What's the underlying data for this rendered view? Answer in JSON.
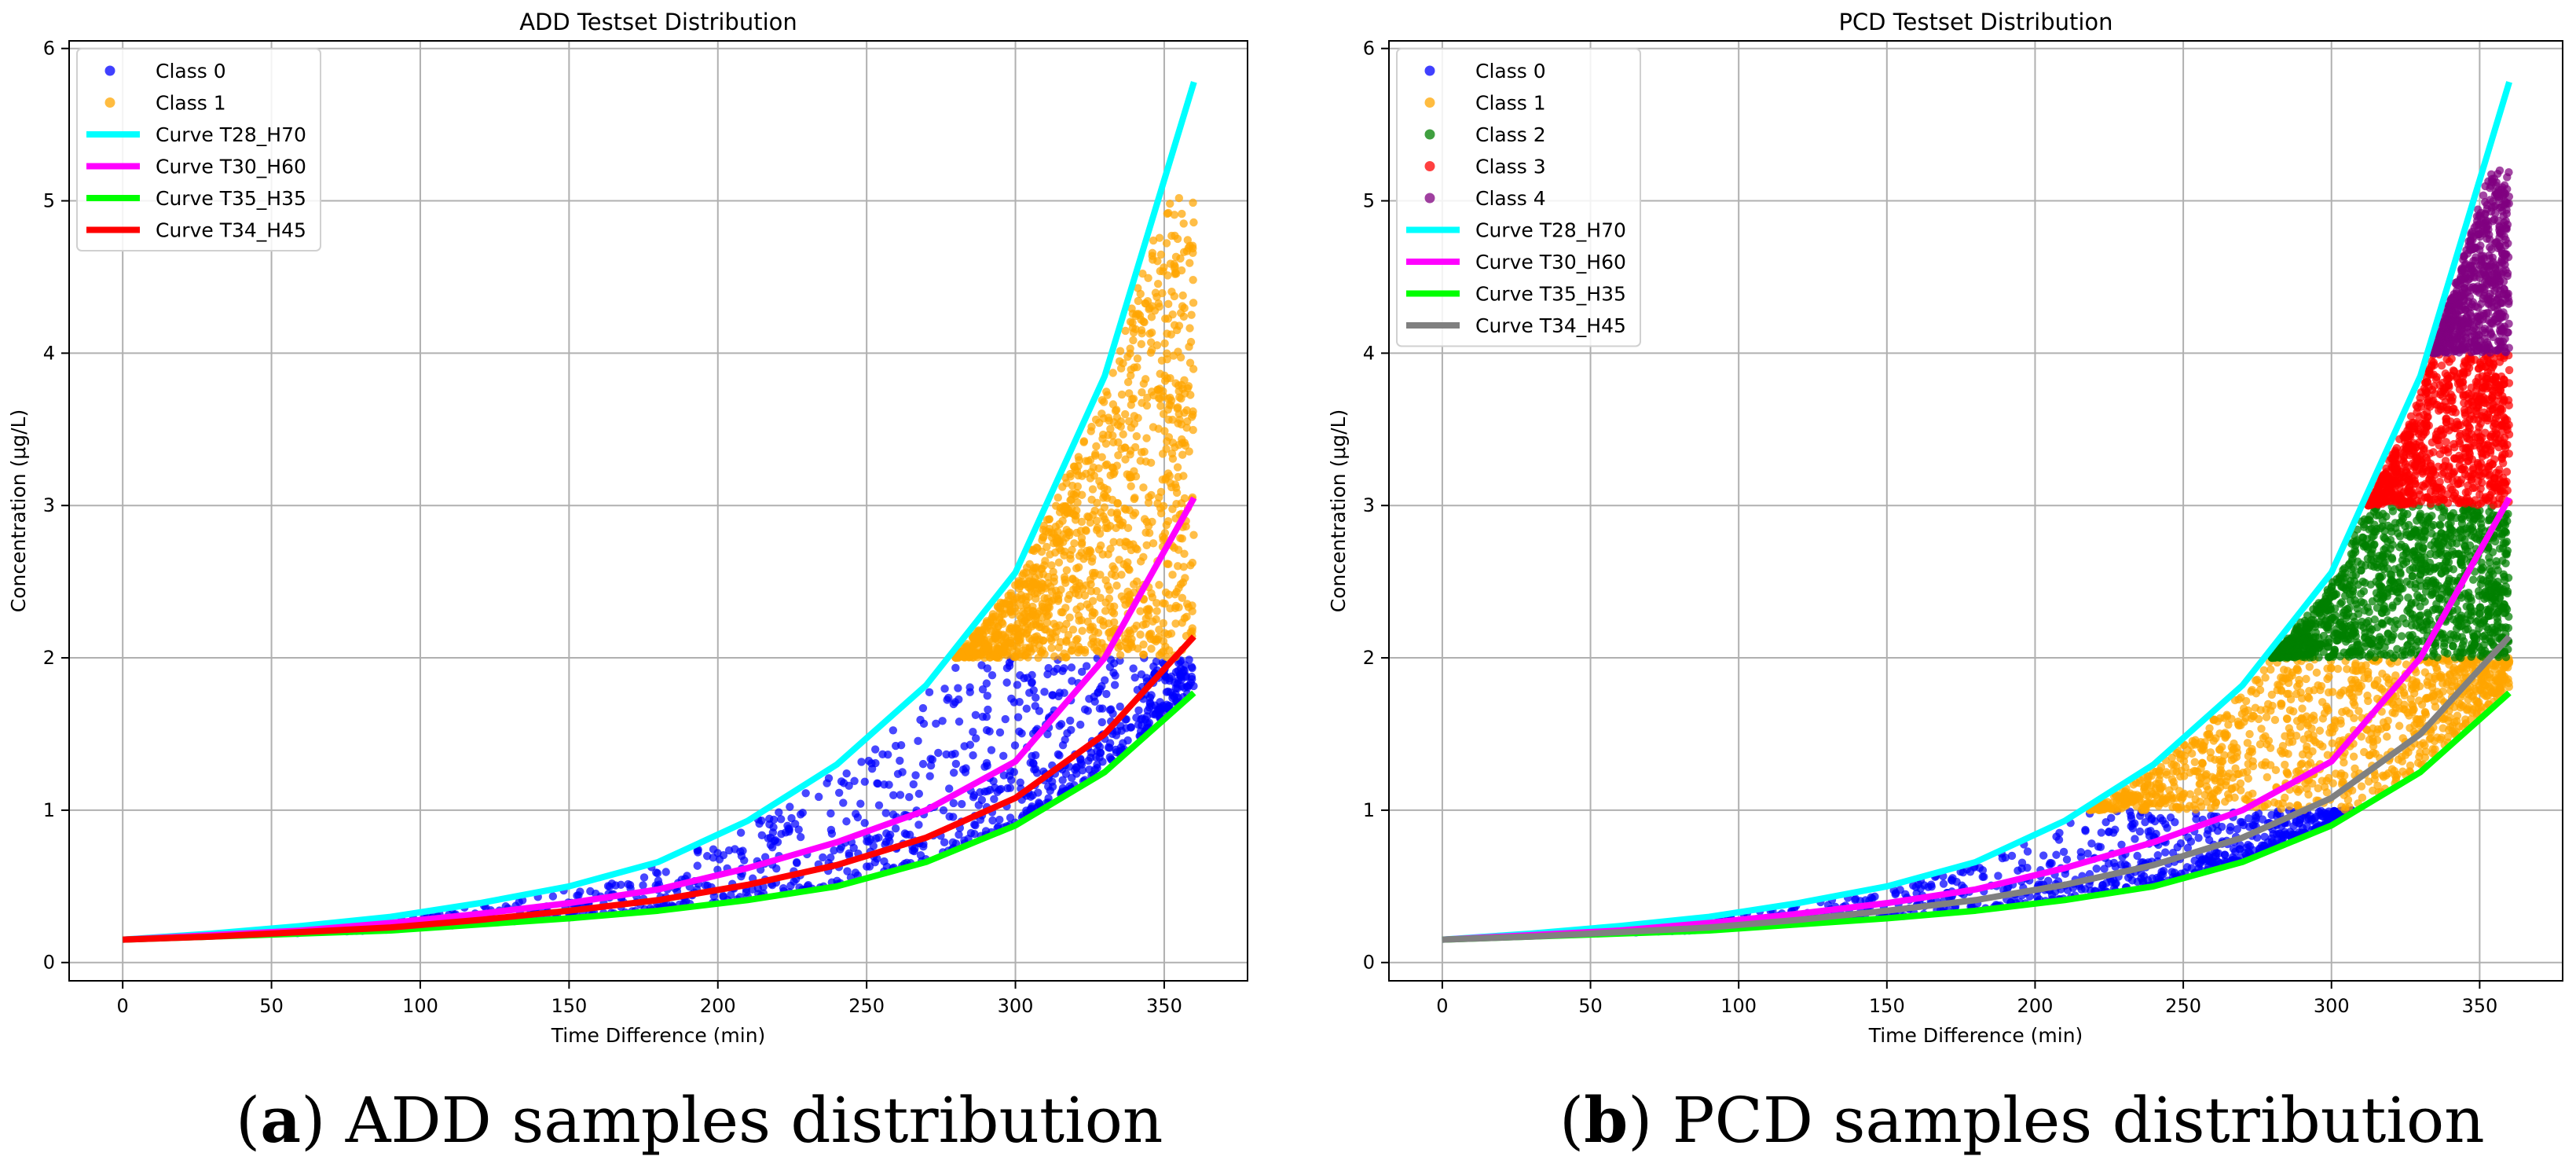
{
  "chart_data": [
    {
      "type": "scatter",
      "title": "ADD Testset Distribution",
      "xlabel": "Time Difference (min)",
      "ylabel": "Concentration (μg/L)",
      "xlim": [
        -18,
        378
      ],
      "ylim": [
        -0.12,
        6.05
      ],
      "xticks": [
        0,
        50,
        100,
        150,
        200,
        250,
        300,
        350
      ],
      "yticks": [
        0,
        1,
        2,
        3,
        4,
        5,
        6
      ],
      "grid": true,
      "legend_position": "top-left",
      "scatter_series": [
        {
          "name": "Class 0",
          "color": "#0000ff",
          "y_band": [
            0,
            2
          ],
          "approx_points": 900
        },
        {
          "name": "Class 1",
          "color": "#ffa500",
          "y_band": [
            2,
            5.05
          ],
          "approx_points": 1200
        }
      ],
      "curve_x": [
        0,
        30,
        60,
        90,
        120,
        150,
        180,
        210,
        240,
        270,
        300,
        330,
        360
      ],
      "curves": [
        {
          "name": "Curve T28_H70",
          "color": "#00ffff",
          "values": [
            0.15,
            0.19,
            0.24,
            0.3,
            0.39,
            0.5,
            0.66,
            0.93,
            1.3,
            1.82,
            2.56,
            3.85,
            5.78
          ]
        },
        {
          "name": "Curve T30_H60",
          "color": "#ff00ff",
          "values": [
            0.15,
            0.18,
            0.21,
            0.26,
            0.32,
            0.39,
            0.48,
            0.62,
            0.79,
            1.0,
            1.32,
            2.0,
            3.05
          ]
        },
        {
          "name": "Curve T35_H35",
          "color": "#00ff00",
          "values": [
            0.15,
            0.17,
            0.19,
            0.21,
            0.25,
            0.29,
            0.34,
            0.41,
            0.5,
            0.66,
            0.9,
            1.25,
            1.77
          ]
        },
        {
          "name": "Curve T34_H45",
          "color": "#ff0000",
          "values": [
            0.15,
            0.17,
            0.2,
            0.23,
            0.28,
            0.34,
            0.41,
            0.51,
            0.64,
            0.82,
            1.08,
            1.5,
            2.14
          ]
        }
      ]
    },
    {
      "type": "scatter",
      "title": "PCD Testset Distribution",
      "xlabel": "Time Difference (min)",
      "ylabel": "Concentration (μg/L)",
      "xlim": [
        -18,
        378
      ],
      "ylim": [
        -0.12,
        6.05
      ],
      "xticks": [
        0,
        50,
        100,
        150,
        200,
        250,
        300,
        350
      ],
      "yticks": [
        0,
        1,
        2,
        3,
        4,
        5,
        6
      ],
      "grid": true,
      "legend_position": "top-left",
      "scatter_series": [
        {
          "name": "Class 0",
          "color": "#0000ff",
          "y_band": [
            0,
            1
          ],
          "approx_points": 700
        },
        {
          "name": "Class 1",
          "color": "#ffa500",
          "y_band": [
            1,
            2
          ],
          "approx_points": 1100
        },
        {
          "name": "Class 2",
          "color": "#008000",
          "y_band": [
            2,
            3
          ],
          "approx_points": 1300
        },
        {
          "name": "Class 3",
          "color": "#ff0000",
          "y_band": [
            3,
            4
          ],
          "approx_points": 900
        },
        {
          "name": "Class 4",
          "color": "#800080",
          "y_band": [
            4,
            5.2
          ],
          "approx_points": 700
        }
      ],
      "curve_x": [
        0,
        30,
        60,
        90,
        120,
        150,
        180,
        210,
        240,
        270,
        300,
        330,
        360
      ],
      "curves": [
        {
          "name": "Curve T28_H70",
          "color": "#00ffff",
          "values": [
            0.15,
            0.19,
            0.24,
            0.3,
            0.39,
            0.5,
            0.66,
            0.93,
            1.3,
            1.82,
            2.56,
            3.85,
            5.78
          ]
        },
        {
          "name": "Curve T30_H60",
          "color": "#ff00ff",
          "values": [
            0.15,
            0.18,
            0.21,
            0.26,
            0.32,
            0.39,
            0.48,
            0.62,
            0.79,
            1.0,
            1.32,
            2.0,
            3.05
          ]
        },
        {
          "name": "Curve T35_H35",
          "color": "#00ff00",
          "values": [
            0.15,
            0.17,
            0.19,
            0.21,
            0.25,
            0.29,
            0.34,
            0.41,
            0.5,
            0.66,
            0.9,
            1.25,
            1.77
          ]
        },
        {
          "name": "Curve T34_H45",
          "color": "#808080",
          "values": [
            0.15,
            0.17,
            0.2,
            0.23,
            0.28,
            0.34,
            0.41,
            0.51,
            0.64,
            0.82,
            1.08,
            1.5,
            2.14
          ]
        }
      ]
    }
  ],
  "captions": [
    {
      "letter": "a",
      "text": " ADD samples distribution"
    },
    {
      "letter": "b",
      "text": " PCD samples distribution"
    }
  ]
}
